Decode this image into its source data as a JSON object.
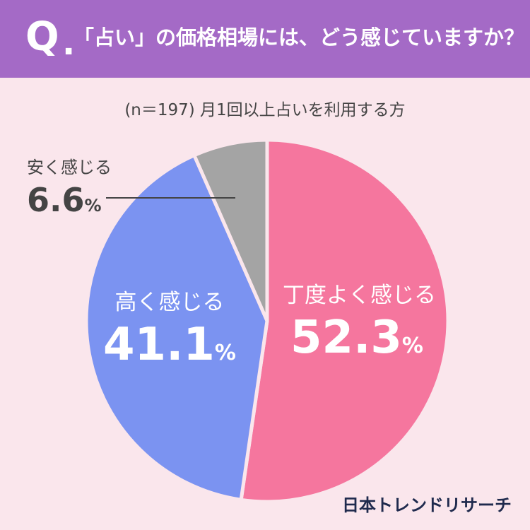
{
  "header": {
    "q_letter": "Q",
    "q_dot": ".",
    "question": "「占い」の価格相場には、どう感じていますか？",
    "bg_color": "#a46ac6"
  },
  "subtitle": "(n＝197) 月1回以上占いを利用する方",
  "chart_data": {
    "type": "pie",
    "start": "12 o'clock, clockwise",
    "slices": [
      {
        "label": "丁度よく感じる",
        "value": 52.3,
        "value_text": "52.3",
        "unit": "%",
        "color": "#f5769e"
      },
      {
        "label": "高く感じる",
        "value": 41.1,
        "value_text": "41.1",
        "unit": "%",
        "color": "#7b93f1"
      },
      {
        "label": "安く感じる",
        "value": 6.6,
        "value_text": "6.6",
        "unit": "%",
        "color": "#a4a4a4"
      }
    ]
  },
  "logo": "日本トレンドリサーチ",
  "colors": {
    "background": "#fae6ec",
    "separator": "#fae6ec"
  }
}
